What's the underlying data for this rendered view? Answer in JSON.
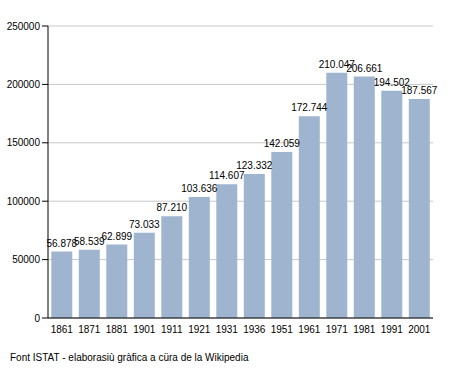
{
  "chart_data": {
    "type": "bar",
    "categories": [
      "1861",
      "1871",
      "1881",
      "1901",
      "1911",
      "1921",
      "1931",
      "1936",
      "1951",
      "1961",
      "1971",
      "1981",
      "1991",
      "2001"
    ],
    "values": [
      56878,
      58539,
      62899,
      73033,
      87210,
      103636,
      114607,
      123332,
      142059,
      172744,
      210047,
      206661,
      194502,
      187567
    ],
    "value_labels": [
      "56.878",
      "58.539",
      "62.899",
      "73.033",
      "87.210",
      "103.636",
      "114.607",
      "123.332",
      "142.059",
      "172.744",
      "210.047",
      "206.661",
      "194.502",
      "187.567"
    ],
    "data_labels": true,
    "color": "#9fb5cf",
    "ylim": [
      0,
      250000
    ],
    "yticks": [
      0,
      50000,
      100000,
      150000,
      200000,
      250000
    ],
    "grid": true,
    "annotations": [
      "Font ISTAT - elaborasiù gràfica a cüra de la Wikipedia"
    ]
  }
}
